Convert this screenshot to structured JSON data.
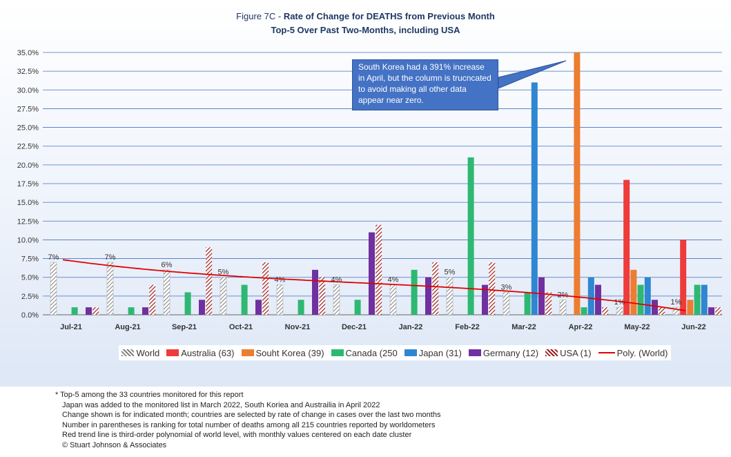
{
  "chart_data": {
    "type": "bar",
    "title_prefix": "Figure 7C - ",
    "title_main": "Rate of Change for DEATHS from Previous Month",
    "subtitle": "Top-5 Over Past Two-Months, including USA",
    "categories": [
      "Jul-21",
      "Aug-21",
      "Sep-21",
      "Oct-21",
      "Nov-21",
      "Dec-21",
      "Jan-22",
      "Feb-22",
      "Mar-22",
      "Apr-22",
      "May-22",
      "Jun-22"
    ],
    "ylim": [
      0,
      35
    ],
    "yticks": [
      "0.0%",
      "2.5%",
      "5.0%",
      "7.5%",
      "10.0%",
      "12.5%",
      "15.0%",
      "17.5%",
      "20.0%",
      "22.5%",
      "25.0%",
      "27.5%",
      "30.0%",
      "32.5%",
      "35.0%"
    ],
    "grid": true,
    "legend_position": "bottom",
    "series": [
      {
        "name": "World",
        "color": "#bfbfbf",
        "pattern": "hatch-gray",
        "values": [
          7,
          7,
          6,
          5,
          4,
          4,
          4,
          5,
          3,
          2,
          1,
          1
        ]
      },
      {
        "name": "Australia (63)",
        "color": "#ee3b3b",
        "values": [
          0,
          0,
          0,
          0,
          0,
          0,
          0,
          0,
          0,
          0,
          18,
          10
        ]
      },
      {
        "name": "Souht Korea (39)",
        "color": "#ed7d31",
        "values": [
          0,
          0,
          0,
          0,
          0,
          0,
          0,
          0,
          0,
          35,
          6,
          2
        ]
      },
      {
        "name": "Canada (250",
        "color": "#2eb872",
        "values": [
          1,
          1,
          3,
          4,
          2,
          2,
          6,
          21,
          3,
          1,
          4,
          4
        ]
      },
      {
        "name": "Japan (31)",
        "color": "#2f86d1",
        "values": [
          0,
          0,
          0,
          0,
          0,
          0,
          0,
          0,
          31,
          5,
          5,
          4
        ]
      },
      {
        "name": "Germany (12)",
        "color": "#7030a0",
        "values": [
          1,
          1,
          2,
          2,
          6,
          11,
          5,
          4,
          5,
          4,
          2,
          1
        ]
      },
      {
        "name": "USA (1)",
        "color": "#9b1b1b",
        "pattern": "hatch-red",
        "values": [
          1,
          4,
          9,
          7,
          5,
          12,
          7,
          7,
          3,
          1,
          1,
          1
        ]
      }
    ],
    "data_labels": [
      "7%",
      "7%",
      "6%",
      "5%",
      "4%",
      "4%",
      "4%",
      "5%",
      "3%",
      "2%",
      "1%",
      "1%"
    ],
    "trend": {
      "name": "Poly. (World)",
      "color": "#e00000"
    },
    "annotation": "South Korea had a 391% increase in April, but the column is trucncated to avoid making all other data appear near zero."
  },
  "notes": [
    "* Top-5 among the 33 countries monitored for this report",
    "Japan was added to the monitored list in March 2022, South Koriea and Austrailia  in April 2022",
    "Change shown is for indicated month; countries are selected by rate of change in cases over the last two months",
    "Number in parentheses is ranking for total number of deaths among all 215 countries reported by worldometers",
    "Red trend line is third-order polynomial of world level, with monthly values centered on each date cluster",
    "© Stuart Johnson & Associates"
  ]
}
